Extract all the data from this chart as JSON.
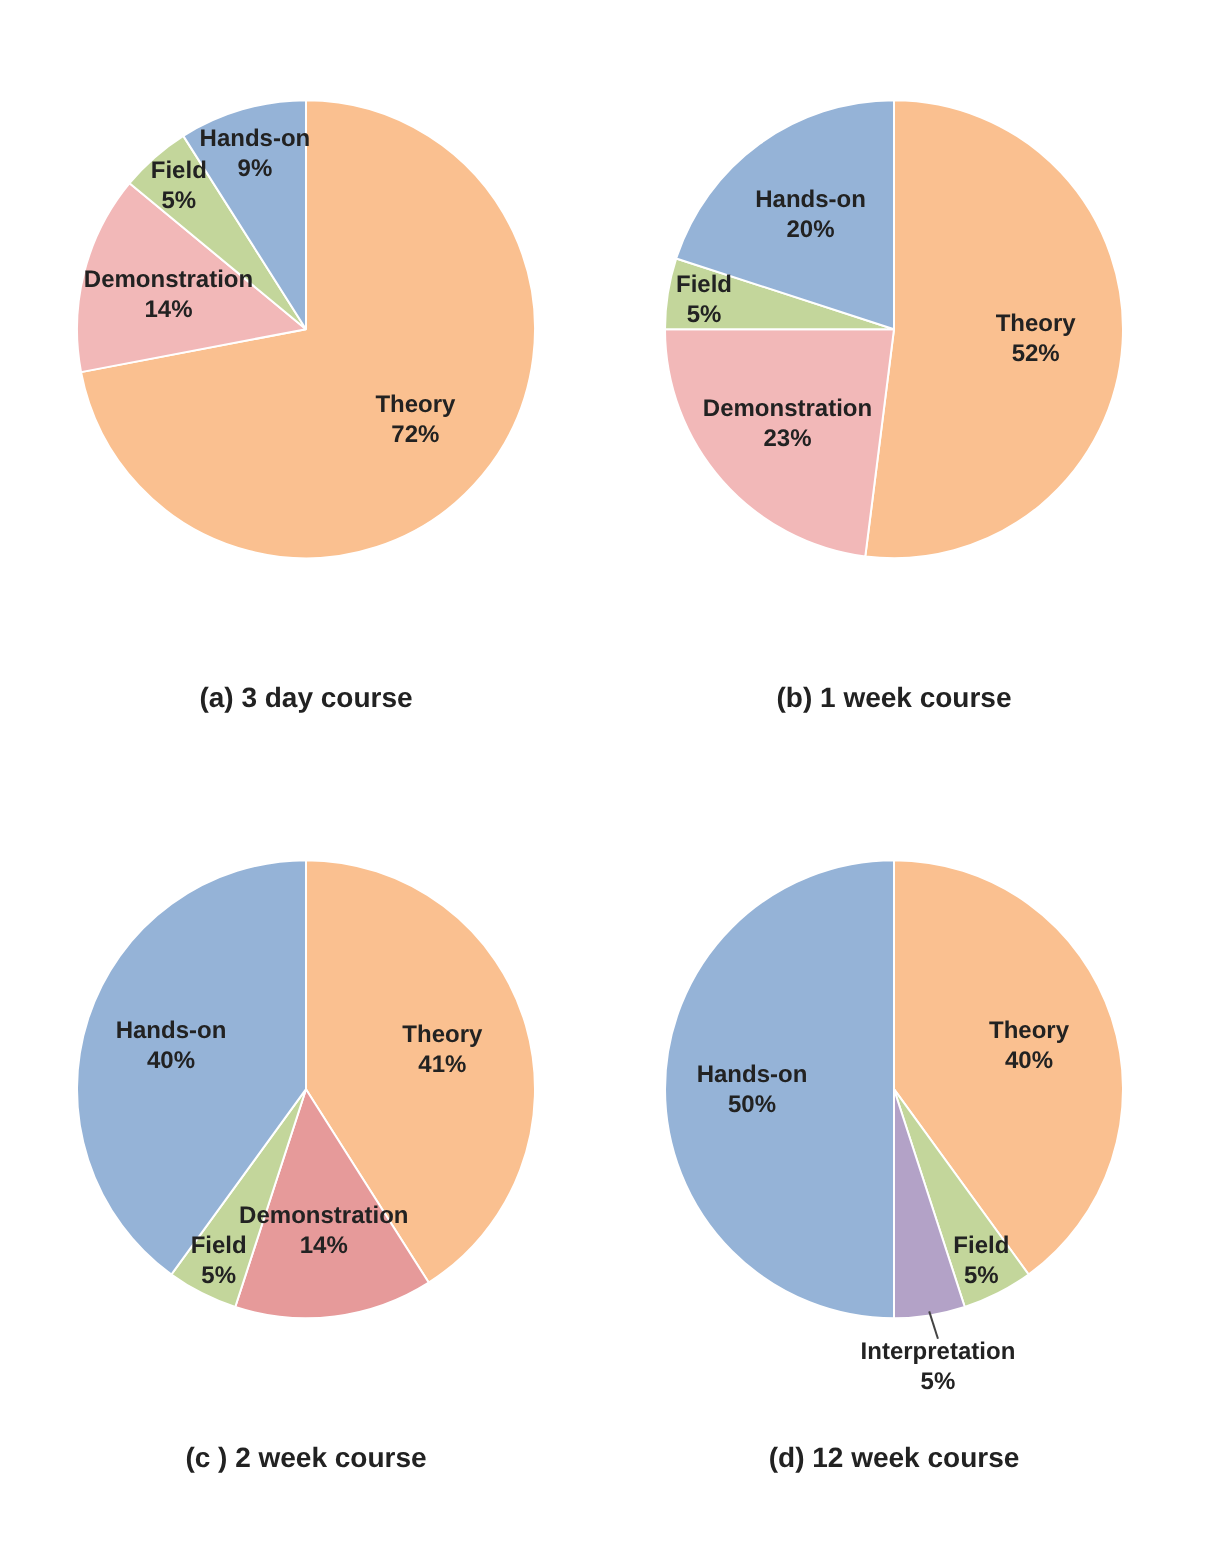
{
  "chart_data": [
    {
      "type": "pie",
      "title": "(a) 3 day course",
      "categories": [
        "Theory",
        "Demonstration",
        "Field",
        "Hands-on"
      ],
      "values": [
        72,
        14,
        5,
        9
      ],
      "value_labels": [
        "72%",
        "14%",
        "5%",
        "9%"
      ],
      "colors": [
        "#fac090",
        "#f2b8b8",
        "#c3d69b",
        "#95b3d7"
      ],
      "legend": false
    },
    {
      "type": "pie",
      "title": "(b) 1 week course",
      "categories": [
        "Theory",
        "Demonstration",
        "Field",
        "Hands-on"
      ],
      "values": [
        52,
        23,
        5,
        20
      ],
      "value_labels": [
        "52%",
        "23%",
        "5%",
        "20%"
      ],
      "colors": [
        "#fac090",
        "#f2b8b8",
        "#c3d69b",
        "#95b3d7"
      ],
      "legend": false
    },
    {
      "type": "pie",
      "title": "(c ) 2 week course",
      "categories": [
        "Theory",
        "Demonstration",
        "Field",
        "Hands-on"
      ],
      "values": [
        41,
        14,
        5,
        40
      ],
      "value_labels": [
        "41%",
        "14%",
        "5%",
        "40%"
      ],
      "colors": [
        "#fac090",
        "#e69a9a",
        "#c3d69b",
        "#95b3d7"
      ],
      "legend": false
    },
    {
      "type": "pie",
      "title": "(d) 12 week course",
      "categories": [
        "Theory",
        "Field",
        "Interpretation",
        "Hands-on"
      ],
      "values": [
        40,
        5,
        5,
        50
      ],
      "value_labels": [
        "40%",
        "5%",
        "5%",
        "50%"
      ],
      "colors": [
        "#fac090",
        "#c3d69b",
        "#b3a2c7",
        "#95b3d7"
      ],
      "legend": false
    }
  ]
}
